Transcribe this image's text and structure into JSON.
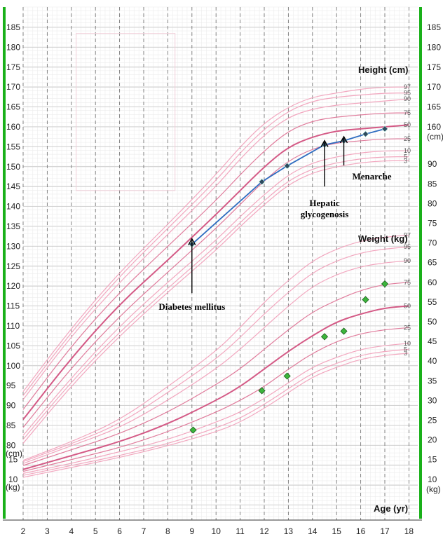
{
  "chart_data": {
    "type": "line",
    "title": "",
    "xlabel": "Age (yr)",
    "height_label": "Height (cm)",
    "weight_label": "Weight (kg)",
    "x_ticks": [
      "2",
      "3",
      "4",
      "5",
      "6",
      "7",
      "8",
      "9",
      "10",
      "11",
      "12",
      "13",
      "14",
      "15",
      "16",
      "17",
      "18"
    ],
    "left_ticks": {
      "height": [
        "185",
        "180",
        "175",
        "170",
        "165",
        "160",
        "155",
        "150",
        "145",
        "140",
        "135",
        "130",
        "125",
        "120",
        "115",
        "110",
        "105",
        "100",
        "95",
        "90",
        "85",
        "80"
      ],
      "height_unit": "(cm)",
      "weight": [
        "15",
        "10"
      ],
      "weight_unit": "(kg)"
    },
    "right_ticks": {
      "height": [
        "185",
        "180",
        "175",
        "170",
        "165",
        "160"
      ],
      "height_unit": "(cm)",
      "weight": [
        "90",
        "85",
        "80",
        "75",
        "70",
        "65",
        "60",
        "55",
        "50",
        "45",
        "40",
        "35",
        "30",
        "25",
        "20",
        "15",
        "10"
      ],
      "weight_unit": "(kg)"
    },
    "percentile_labels": [
      "97",
      "95",
      "90",
      "75",
      "50",
      "25",
      "10",
      "5",
      "3"
    ],
    "height_percentiles": {
      "ages": [
        2,
        4,
        6,
        8,
        10,
        11,
        12,
        13,
        14,
        15,
        16,
        17,
        18
      ],
      "p3": [
        80.5,
        95,
        107.5,
        118.5,
        129,
        135,
        140.5,
        145.5,
        148.5,
        150,
        151,
        151.5,
        151.5
      ],
      "p5": [
        81.5,
        96,
        108.5,
        119.5,
        130,
        136,
        141.5,
        146.5,
        149.5,
        151,
        152,
        152.5,
        152.5
      ],
      "p10": [
        82.5,
        97,
        110,
        121,
        131.5,
        137.5,
        143,
        148,
        151,
        152.5,
        153.5,
        154,
        154
      ],
      "p25": [
        84.5,
        99.5,
        112.5,
        123.5,
        134.5,
        140.5,
        146.5,
        151.5,
        154.5,
        156,
        156.5,
        157,
        157
      ],
      "p50": [
        86.5,
        102,
        115.5,
        126.5,
        138,
        144,
        150,
        155,
        157.5,
        159,
        159.5,
        160,
        160.5
      ],
      "p75": [
        89,
        105,
        118.5,
        130,
        141.5,
        148,
        154,
        159,
        161.5,
        162.5,
        163,
        163.5,
        163.5
      ],
      "p90": [
        91.5,
        107.5,
        121,
        133,
        145,
        152,
        158,
        162.5,
        164.5,
        165.5,
        166,
        166.5,
        167
      ],
      "p95": [
        92.5,
        108.5,
        122.5,
        134.5,
        146.5,
        153.5,
        159.5,
        164,
        166.5,
        167.5,
        168,
        168.5,
        168.5
      ],
      "p97": [
        93.5,
        109.5,
        123.5,
        135.5,
        148,
        155,
        161,
        165,
        167.5,
        168.5,
        169.5,
        170,
        170
      ]
    },
    "weight_percentiles": {
      "ages": [
        2,
        4,
        6,
        8,
        10,
        11,
        12,
        13,
        14,
        15,
        16,
        17,
        18
      ],
      "p3": [
        10.5,
        13,
        15.5,
        18.5,
        22,
        24.5,
        28,
        32,
        36,
        38.5,
        40.5,
        41.5,
        42
      ],
      "p5": [
        11,
        13.5,
        16,
        19,
        23,
        25.5,
        29,
        33,
        37,
        39.5,
        41.5,
        42.5,
        43
      ],
      "p10": [
        11.5,
        14,
        17,
        20,
        24.5,
        27,
        30.5,
        34.5,
        38.5,
        41,
        43,
        44,
        44.5
      ],
      "p25": [
        12,
        15,
        18,
        22,
        27,
        30,
        33.5,
        38,
        42,
        45,
        47,
        48,
        48.5
      ],
      "p50": [
        12.5,
        16,
        19.5,
        24,
        30,
        33.5,
        38,
        42.5,
        46.5,
        50,
        52,
        53.5,
        54
      ],
      "p75": [
        13.5,
        17.5,
        21.5,
        27,
        34,
        38,
        43,
        48,
        52.5,
        55.5,
        58,
        59.5,
        60
      ],
      "p90": [
        14,
        18.5,
        23,
        30,
        38,
        43,
        48.5,
        54,
        59,
        62,
        64,
        65,
        65.5
      ],
      "p95": [
        14.5,
        19,
        24,
        32,
        40.5,
        46,
        52,
        57.5,
        62.5,
        65.5,
        67.5,
        68.5,
        69
      ],
      "p97": [
        14.8,
        19.5,
        25,
        33.5,
        42.5,
        48.5,
        55,
        60.5,
        65.5,
        68.5,
        70.5,
        71.5,
        72
      ]
    },
    "patient_height": {
      "x": [
        9.0,
        11.9,
        12.95,
        14.5,
        15.3,
        16.2,
        17.0
      ],
      "y": [
        130.5,
        146.2,
        150.2,
        155.5,
        156.5,
        158.2,
        159.5
      ]
    },
    "patient_weight": {
      "x": [
        9.05,
        11.9,
        12.95,
        14.5,
        15.3,
        16.2,
        17.0
      ],
      "y": [
        22.5,
        32.5,
        36.2,
        46.2,
        47.6,
        55.6,
        59.6
      ]
    },
    "annotations": [
      {
        "text": "Diabetes mellitus",
        "lines": [
          "Diabetes mellitus"
        ],
        "age": 9.0
      },
      {
        "text": "Hepatic glycogenosis",
        "lines": [
          "Hepatic",
          "glycogenosis"
        ],
        "age": 14.5
      },
      {
        "text": "Menarche",
        "lines": [
          "Menarche"
        ],
        "age": 15.3
      }
    ],
    "colors": {
      "percentile_light": "#f2a7bf",
      "percentile_mid": "#e07c9c",
      "percentile_median": "#d45a86",
      "patient_line": "#2d6cc0",
      "patient_height_marker": "#2e4a5e",
      "patient_weight_marker": "#3cb53c",
      "frame": "#19b019"
    },
    "grid": true,
    "legend": "none"
  }
}
